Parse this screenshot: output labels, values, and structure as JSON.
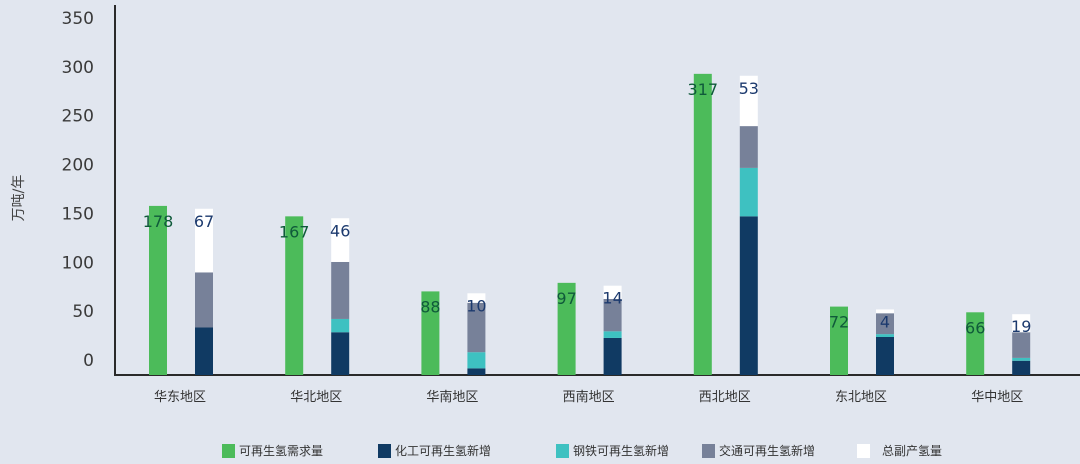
{
  "chart_data": {
    "type": "bar",
    "ylabel": "万吨/年",
    "ylim": [
      0,
      350
    ],
    "yticks": [
      0,
      50,
      100,
      150,
      200,
      250,
      300,
      350
    ],
    "grid": false,
    "legend_position": "bottom",
    "categories": [
      "华东地区",
      "华北地区",
      "华南地区",
      "西南地区",
      "西北地区",
      "东北地区",
      "华中地区"
    ],
    "demand_series": {
      "name": "可再生氢需求量",
      "color": "#4cbb5a",
      "values": [
        178,
        167,
        88,
        97,
        317,
        72,
        66
      ]
    },
    "stacked_series": [
      {
        "name": "化工可再生氢新增",
        "color": "#103a63",
        "values": [
          50,
          45,
          7,
          39,
          167,
          40,
          15
        ]
      },
      {
        "name": "钢铁可再生氢新增",
        "color": "#3ec1c1",
        "values": [
          0,
          14,
          17,
          7,
          51,
          3,
          3
        ]
      },
      {
        "name": "交通可再生氢新增",
        "color": "#778199",
        "values": [
          58,
          60,
          52,
          34,
          44,
          22,
          27
        ]
      },
      {
        "name": "总副产氢量",
        "color": "#ffffff",
        "values": [
          67,
          46,
          10,
          14,
          53,
          4,
          19
        ]
      }
    ],
    "demand_label_color": "#0f5a3a",
    "stack_label_color": "#1c3a6e"
  }
}
